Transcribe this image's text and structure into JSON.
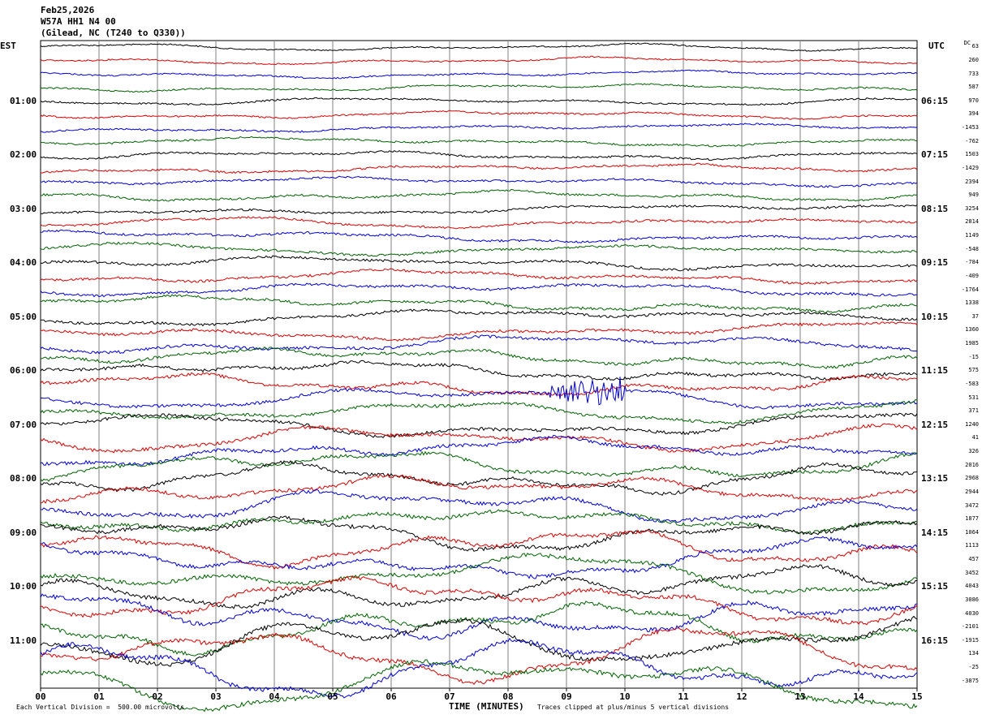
{
  "header": {
    "date": "Feb25,2026",
    "station": "W57A HH1 N4 00",
    "location": "(Gilead, NC (T240 to Q330))"
  },
  "corner_left": "EST",
  "corner_right": "UTC",
  "dc_header": "DC",
  "colors": {
    "black": "#000000",
    "red": "#dd0000",
    "blue": "#0000dd",
    "green": "#006400",
    "grid": "#808080"
  },
  "chart_data": {
    "type": "line",
    "title": "",
    "xlabel": "TIME (MINUTES)",
    "ylabel": "",
    "x_ticks": [
      "00",
      "01",
      "02",
      "03",
      "04",
      "05",
      "06",
      "07",
      "08",
      "09",
      "10",
      "11",
      "12",
      "13",
      "14",
      "15"
    ],
    "xlim": [
      0,
      15
    ],
    "row_minutes": 15,
    "row_count": 48,
    "color_cycle": [
      "black",
      "red",
      "blue",
      "green"
    ],
    "left_time_labels": [
      "01:00",
      "02:00",
      "03:00",
      "04:00",
      "05:00",
      "06:00",
      "07:00",
      "08:00",
      "09:00",
      "10:00",
      "11:00"
    ],
    "right_time_labels": [
      "06:15",
      "07:15",
      "08:15",
      "09:15",
      "10:15",
      "11:15",
      "12:15",
      "13:15",
      "14:15",
      "15:15",
      "16:15"
    ],
    "time_label_first_row": 4,
    "time_label_row_step": 4,
    "dc_offsets": [
      "63",
      "260",
      "733",
      "587",
      "970",
      "394",
      "-1453",
      "-762",
      "1503",
      "-1429",
      "2394",
      "949",
      "3254",
      "2814",
      "1149",
      "-548",
      "-784",
      "-409",
      "-1764",
      "1338",
      "37",
      "1360",
      "1985",
      "-15",
      "575",
      "-583",
      "531",
      "371",
      "1240",
      "41",
      "326",
      "2016",
      "2968",
      "2944",
      "3472",
      "1877",
      "1064",
      "1113",
      "457",
      "3452",
      "4043",
      "3086",
      "4030",
      "-2101",
      "-1915",
      "134",
      "-25",
      "-3875"
    ],
    "noise_event": {
      "row": 26,
      "minute_start": 8.7,
      "minute_end": 10.0
    },
    "footer_left": "Each Vertical Division =  500.00 microvolts",
    "footer_right": "Traces clipped at plus/minus 5 vertical divisions"
  }
}
